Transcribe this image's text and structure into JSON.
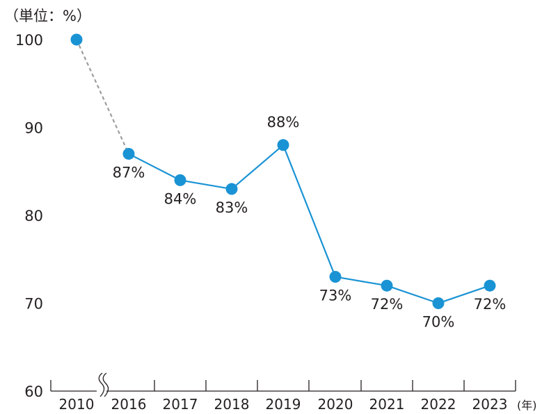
{
  "chart_data": {
    "type": "line",
    "y_unit_label": "（単位：%）",
    "x_unit_label": "(年)",
    "categories": [
      "2010",
      "2016",
      "2017",
      "2018",
      "2019",
      "2020",
      "2021",
      "2022",
      "2023"
    ],
    "values": [
      100,
      87,
      84,
      83,
      88,
      73,
      72,
      70,
      72
    ],
    "data_labels": [
      "",
      "87%",
      "84%",
      "83%",
      "88%",
      "73%",
      "72%",
      "70%",
      "72%"
    ],
    "y_ticks": [
      "60",
      "70",
      "80",
      "90",
      "100"
    ],
    "ylim": [
      60,
      100
    ],
    "grid": false,
    "axis_break_between": [
      "2010",
      "2016"
    ],
    "dashed_segment": [
      "2010",
      "2016"
    ],
    "colors": {
      "line": "#1a93d4",
      "marker": "#1a93d4",
      "dashed": "#9e9e9e",
      "axis": "#231f20",
      "text": "#231f20"
    }
  }
}
